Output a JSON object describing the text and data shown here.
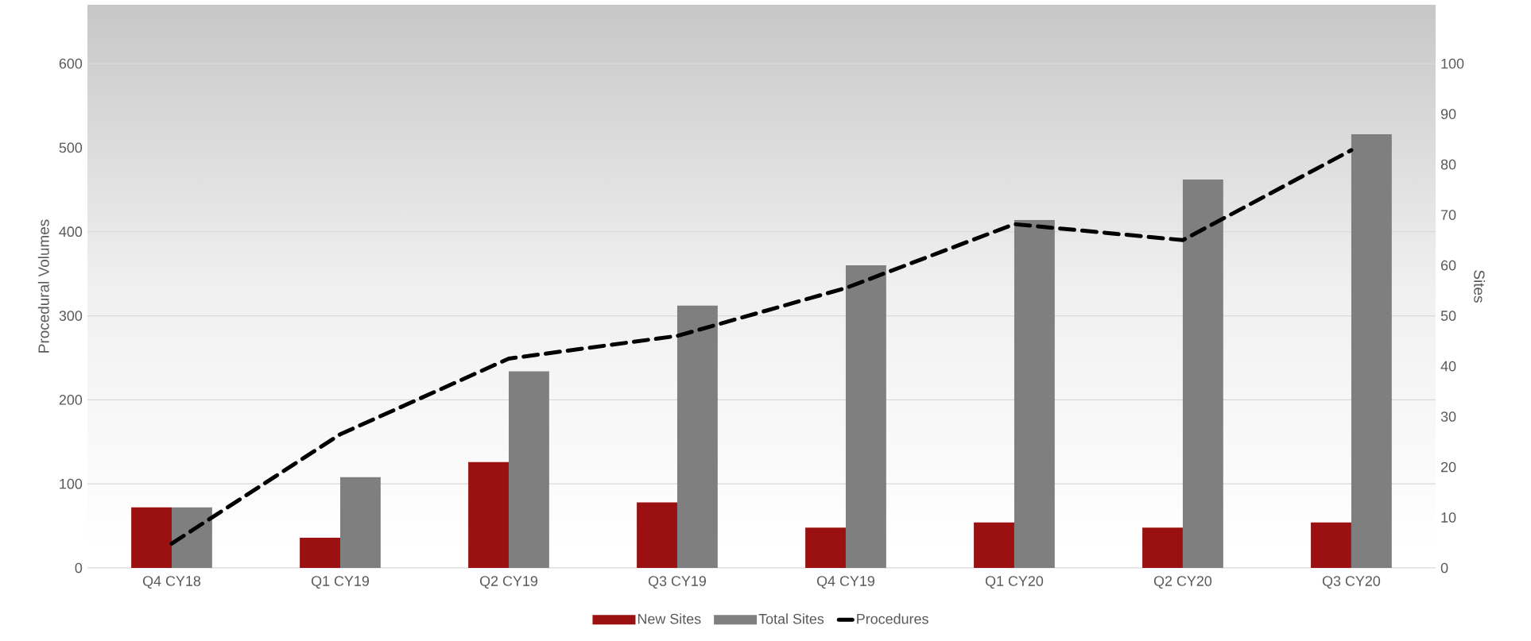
{
  "chart_data": {
    "type": "bar",
    "ylabel": "Procedural Volumes",
    "y2label": "Sites",
    "categories": [
      "Q4 CY18",
      "Q1 CY19",
      "Q2 CY19",
      "Q3 CY19",
      "Q4 CY19",
      "Q1 CY20",
      "Q2 CY20",
      "Q3 CY20"
    ],
    "series": [
      {
        "name": "New Sites",
        "color": "#9b1111",
        "axis": "y2",
        "values": [
          12,
          6,
          21,
          13,
          8,
          9,
          8,
          9
        ]
      },
      {
        "name": "Total Sites",
        "color": "#7f7f7f",
        "axis": "y2",
        "values": [
          12,
          18,
          39,
          52,
          60,
          69,
          77,
          86
        ]
      },
      {
        "name": "Procedures",
        "type": "line",
        "color": "#000000",
        "line_style": "dashed",
        "marker": "none",
        "axis": "y",
        "values": [
          29,
          159,
          249,
          276,
          333,
          409,
          390,
          497
        ]
      }
    ],
    "ylim": [
      0,
      670
    ],
    "yticks": [
      0,
      100,
      200,
      300,
      400,
      500,
      600
    ],
    "y2lim": [
      0,
      111.67
    ],
    "y2ticks": [
      0,
      10,
      20,
      30,
      40,
      50,
      60,
      70,
      80,
      90,
      100
    ],
    "grid": "y",
    "legend": "bottom"
  }
}
